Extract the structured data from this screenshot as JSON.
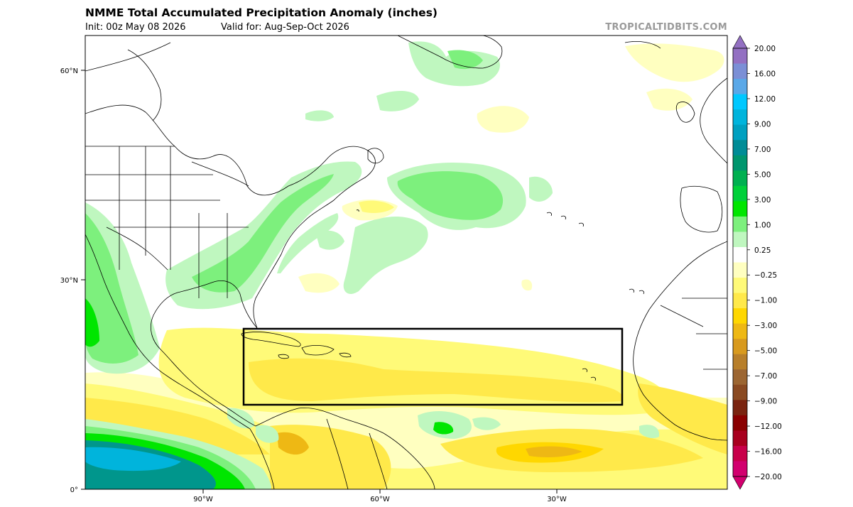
{
  "header": {
    "title": "NMME Total Accumulated Precipitation Anomaly (inches)",
    "init": "Init: 00z May 08 2026",
    "valid": "Valid for: Aug-Sep-Oct 2026",
    "credit": "TROPICALTIDBITS.COM"
  },
  "axes": {
    "lat_labels": [
      "60°N",
      "30°N",
      "0°"
    ],
    "lon_labels": [
      "90°W",
      "60°W",
      "30°W"
    ]
  },
  "colorbar": {
    "labels": [
      "20.00",
      "16.00",
      "12.00",
      "9.00",
      "7.00",
      "5.00",
      "3.00",
      "1.00",
      "0.25",
      "−0.25",
      "−1.00",
      "−3.00",
      "−5.00",
      "−7.00",
      "−9.00",
      "−12.00",
      "−16.00",
      "−20.00"
    ],
    "colors": [
      "#9370c2",
      "#7b8fd6",
      "#5aa8e8",
      "#00c8ff",
      "#00b4dc",
      "#00a0c0",
      "#008c96",
      "#00966e",
      "#00b050",
      "#00d03a",
      "#00e600",
      "#7df07d",
      "#bff7bf",
      "#ffffff",
      "#ffffc0",
      "#fffa78",
      "#ffe94a",
      "#ffd700",
      "#eeb814",
      "#d89a1e",
      "#b87f2a",
      "#9c6632",
      "#8a4a22",
      "#7a2410",
      "#8a0000",
      "#a8001e",
      "#c8004a",
      "#d2006e"
    ]
  },
  "map": {
    "precip_colors": {
      "light_green": "#bff7bf",
      "green": "#7df07d",
      "bright_green": "#00e600",
      "dark_green": "#00b050",
      "teal": "#00968c",
      "cyan": "#00b4dc",
      "light_yellow": "#ffffc0",
      "yellow": "#fffa78",
      "gold": "#ffe94a",
      "orange": "#ffd700",
      "dark_orange": "#d89a1e"
    },
    "region_box": "MDR outline"
  }
}
